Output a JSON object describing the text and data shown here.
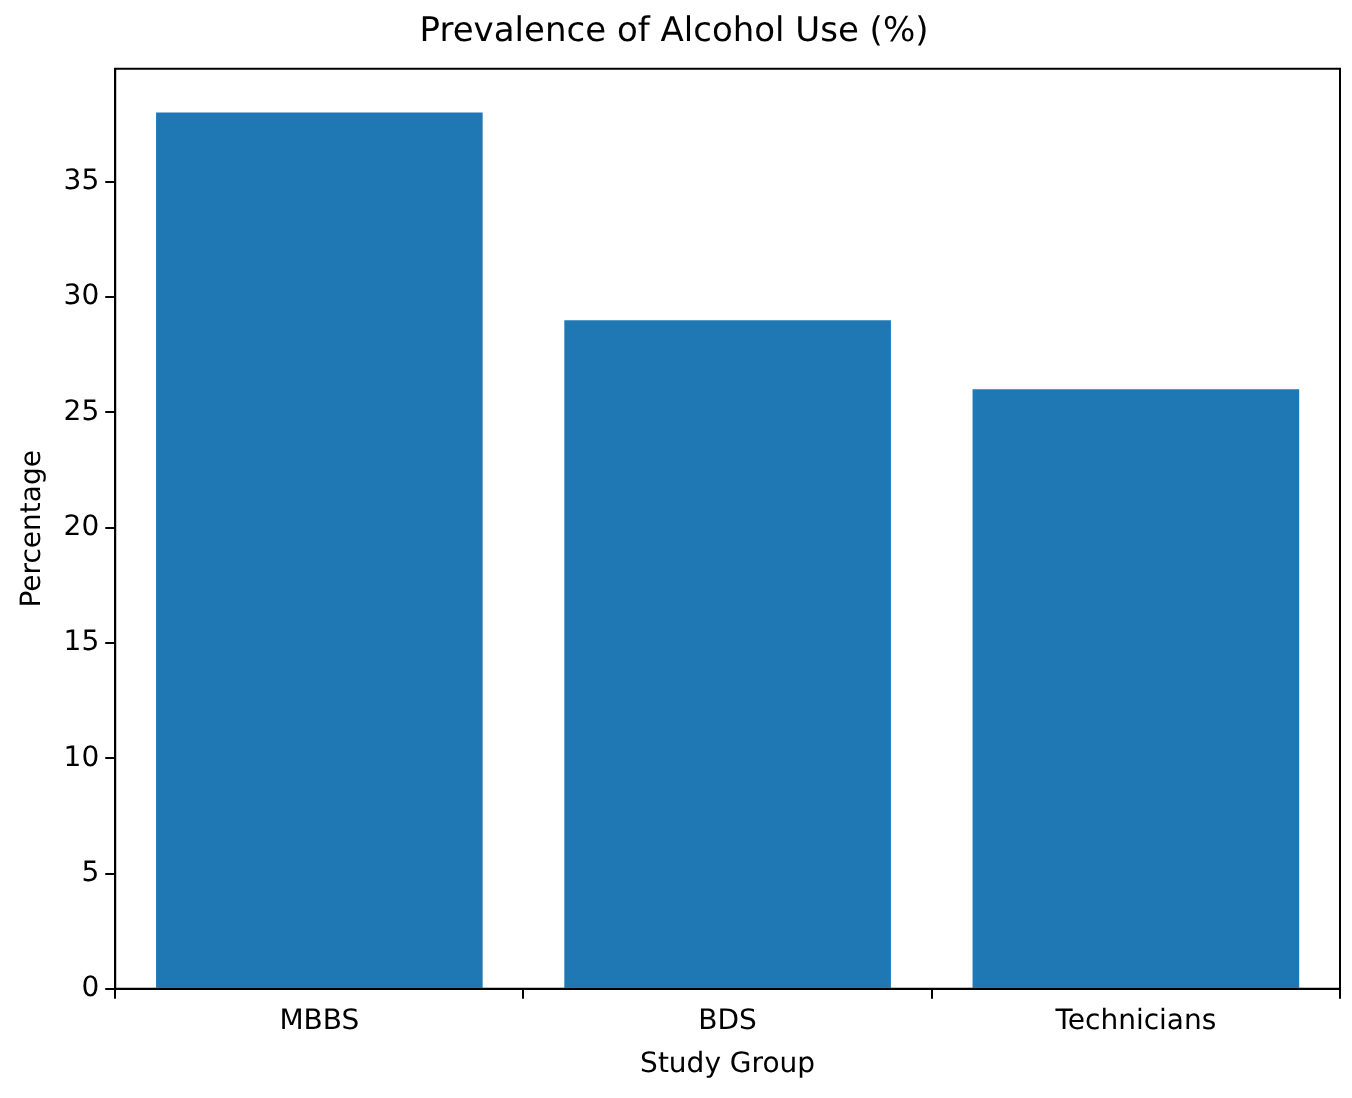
{
  "chart_data": {
    "type": "bar",
    "title": "Prevalence of Alcohol Use (%)",
    "xlabel": "Study Group",
    "ylabel": "Percentage",
    "categories": [
      "MBBS",
      "BDS",
      "Technicians"
    ],
    "values": [
      38,
      29,
      26
    ],
    "color": "#1f77b4",
    "ylim": [
      0,
      39.9
    ],
    "yticks": [
      0,
      5,
      10,
      15,
      20,
      25,
      30,
      35
    ],
    "grid": false,
    "legend": false
  }
}
